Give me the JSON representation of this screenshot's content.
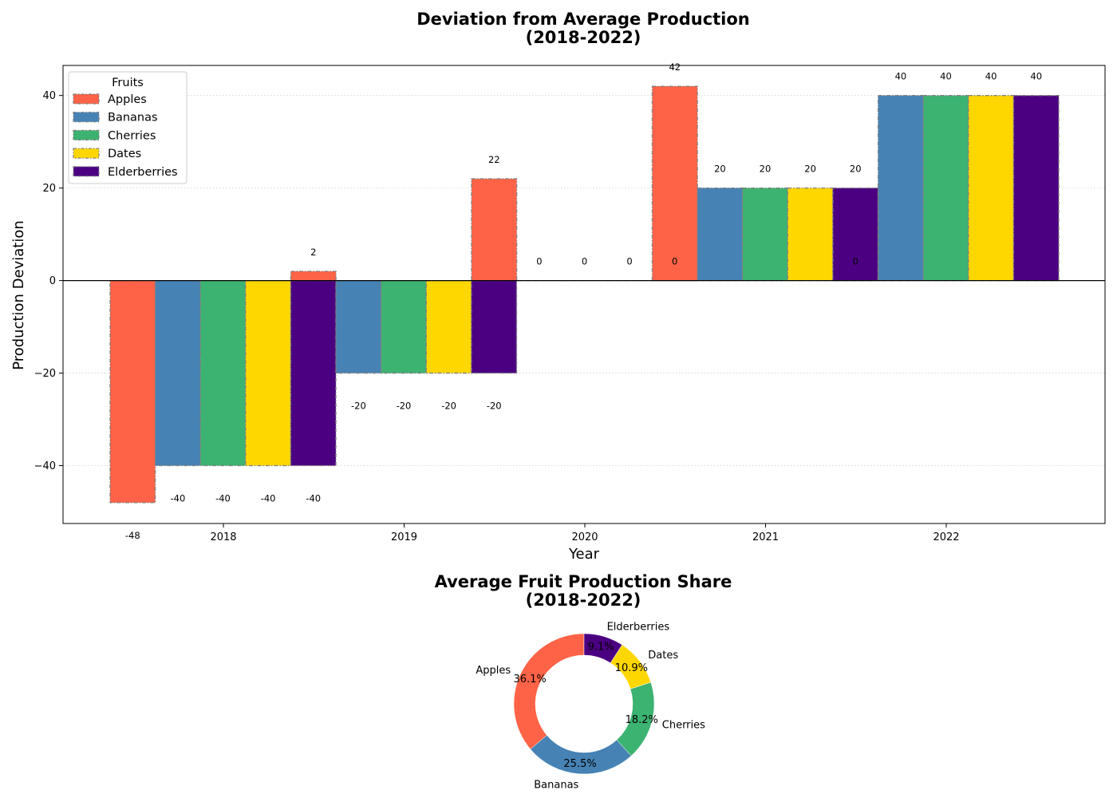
{
  "chart_data": [
    {
      "type": "bar",
      "title_line1": "Deviation from Average Production",
      "title_line2": "(2018-2022)",
      "xlabel": "Year",
      "ylabel": "Production Deviation",
      "ylim": [
        -52.5,
        46.5
      ],
      "yticks": [
        -40,
        -20,
        0,
        20,
        40
      ],
      "ytick_labels": [
        "−40",
        "−20",
        "0",
        "20",
        "40"
      ],
      "grid": "y-dotted",
      "legend_title": "Fruits",
      "legend_position": "top-left",
      "categories": [
        "2018",
        "2019",
        "2020",
        "2021",
        "2022"
      ],
      "series": [
        {
          "name": "Apples",
          "color": "#FF6347",
          "values": [
            -48,
            2,
            22,
            42,
            0
          ],
          "labels": [
            "-48",
            "2",
            "22",
            "42",
            "0"
          ]
        },
        {
          "name": "Bananas",
          "color": "#4682B4",
          "values": [
            -40,
            -20,
            0,
            20,
            40
          ],
          "labels": [
            "-40",
            "-20",
            "0",
            "20",
            "40"
          ]
        },
        {
          "name": "Cherries",
          "color": "#3CB371",
          "values": [
            -40,
            -20,
            0,
            20,
            40
          ],
          "labels": [
            "-40",
            "-20",
            "0",
            "20",
            "40"
          ]
        },
        {
          "name": "Dates",
          "color": "#FFD700",
          "values": [
            -40,
            -20,
            0,
            20,
            40
          ],
          "labels": [
            "-40",
            "-20",
            "0",
            "20",
            "40"
          ]
        },
        {
          "name": "Elderberries",
          "color": "#4B0082",
          "values": [
            -40,
            -20,
            0,
            20,
            40
          ],
          "labels": [
            "-40",
            "-20",
            "0",
            "20",
            "40"
          ]
        }
      ]
    },
    {
      "type": "pie",
      "style": "donut",
      "title_line1": "Average Fruit Production Share",
      "title_line2": "(2018-2022)",
      "slices": [
        {
          "name": "Apples",
          "value": 36.1,
          "label": "36.1%",
          "color": "#FF6347"
        },
        {
          "name": "Bananas",
          "value": 25.5,
          "label": "25.5%",
          "color": "#4682B4"
        },
        {
          "name": "Cherries",
          "value": 18.2,
          "label": "18.2%",
          "color": "#3CB371"
        },
        {
          "name": "Dates",
          "value": 10.9,
          "label": "10.9%",
          "color": "#FFD700"
        },
        {
          "name": "Elderberries",
          "value": 9.1,
          "label": "9.1%",
          "color": "#4B0082"
        }
      ]
    }
  ]
}
